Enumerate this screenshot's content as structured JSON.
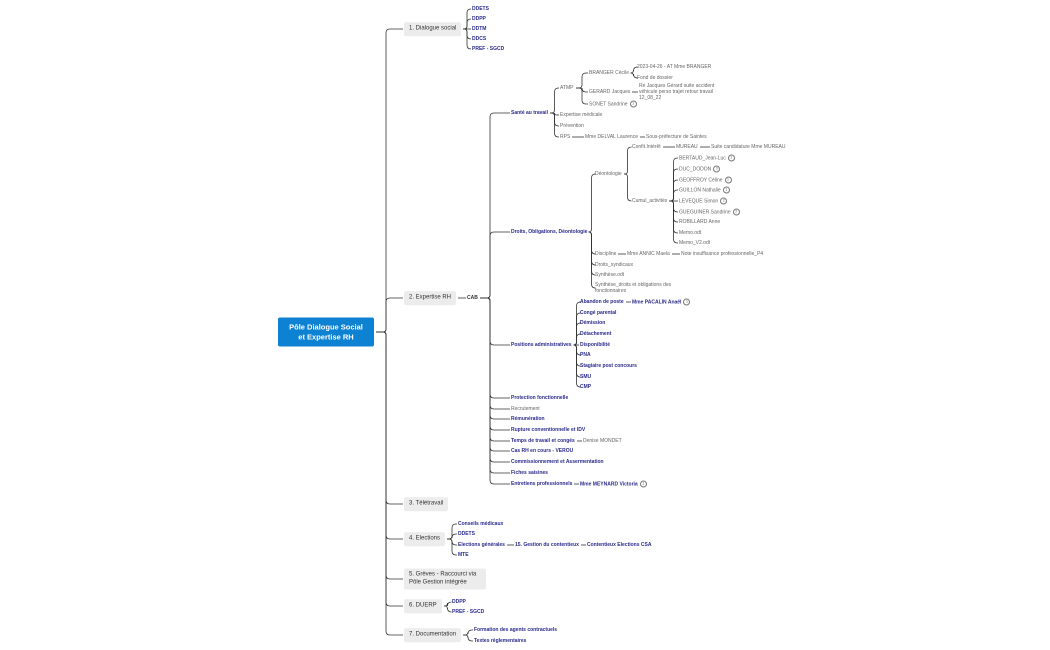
{
  "mindmap": {
    "root": {
      "label": "Pôle Dialogue Social et Expertise RH",
      "style": "root",
      "children": [
        {
          "label": "1. Dialogue social",
          "style": "box",
          "children": [
            {
              "label": "DDETS",
              "style": "blue"
            },
            {
              "label": "DDPP",
              "style": "blue"
            },
            {
              "label": "DDTM",
              "style": "blue"
            },
            {
              "label": "DDCS",
              "style": "blue"
            },
            {
              "label": "PREF - SGCD",
              "style": "blue"
            }
          ]
        },
        {
          "label": "2. Expertise RH",
          "style": "box",
          "children": [
            {
              "label": "CAB",
              "style": "dark",
              "children": [
                {
                  "label": "Santé au travail",
                  "style": "blue",
                  "children": [
                    {
                      "label": "ATMP",
                      "style": "grey",
                      "children": [
                        {
                          "label": "BRANGER Cécile",
                          "style": "grey",
                          "children": [
                            {
                              "label": "2023-04-26 - AT Mme BRANGER",
                              "style": "grey"
                            },
                            {
                              "label": "Fond de dossier",
                              "style": "grey"
                            }
                          ]
                        },
                        {
                          "label": "GERARD Jacques",
                          "style": "grey",
                          "children": [
                            {
                              "label": "Re Jacques Gérard suite accident véhicule perso trajet retour travail 12_08_22",
                              "style": "grey"
                            }
                          ]
                        },
                        {
                          "label": "SONET Sandrine",
                          "style": "grey",
                          "note": "1"
                        }
                      ]
                    },
                    {
                      "label": "Expertise médicale",
                      "style": "grey"
                    },
                    {
                      "label": "Prévention",
                      "style": "grey"
                    },
                    {
                      "label": "RPS",
                      "style": "grey",
                      "children": [
                        {
                          "label": "Mme DELVAL Laurence",
                          "style": "grey",
                          "children": [
                            {
                              "label": "Sous-préfecture de Saintes",
                              "style": "grey"
                            }
                          ]
                        }
                      ]
                    }
                  ]
                },
                {
                  "label": "Droits, Obligations, Déontologie",
                  "style": "blue",
                  "children": [
                    {
                      "label": "Déontologie",
                      "style": "grey",
                      "children": [
                        {
                          "label": "Confit.Intérêt",
                          "style": "grey",
                          "children": [
                            {
                              "label": "MUREAU",
                              "style": "grey",
                              "children": [
                                {
                                  "label": "Suite candidature Mme MUREAU",
                                  "style": "grey"
                                }
                              ]
                            }
                          ]
                        },
                        {
                          "label": "Cumul_activités",
                          "style": "grey",
                          "children": [
                            {
                              "label": "BERTAUD_Jean-Luc",
                              "style": "grey",
                              "note": "1"
                            },
                            {
                              "label": "DUC_DODON",
                              "style": "grey",
                              "note": "3"
                            },
                            {
                              "label": "GEOFFROY Céline",
                              "style": "grey",
                              "note": "1"
                            },
                            {
                              "label": "GUILLON Nathalie",
                              "style": "grey",
                              "note": "1"
                            },
                            {
                              "label": "LEVEQUE Simon",
                              "style": "grey",
                              "note": "2"
                            },
                            {
                              "label": "GUEGUINER Sandrine",
                              "style": "grey",
                              "note": "2"
                            },
                            {
                              "label": "ROBILLARD Anne",
                              "style": "grey"
                            },
                            {
                              "label": "Memo.odt",
                              "style": "grey"
                            },
                            {
                              "label": "Memo_V2.odt",
                              "style": "grey"
                            }
                          ]
                        }
                      ]
                    },
                    {
                      "label": "Discipline",
                      "style": "grey",
                      "children": [
                        {
                          "label": "Mme ANNIC Maela",
                          "style": "grey",
                          "children": [
                            {
                              "label": "Note insuffisance professionnelle_P4",
                              "style": "grey"
                            }
                          ]
                        }
                      ]
                    },
                    {
                      "label": "Droits_syndicaux",
                      "style": "grey"
                    },
                    {
                      "label": "Synthèse.odt",
                      "style": "grey"
                    },
                    {
                      "label": "Synthèse_droits et obligations des fonctionnaires",
                      "style": "grey"
                    }
                  ]
                },
                {
                  "label": "Positions administratives",
                  "style": "blue",
                  "children": [
                    {
                      "label": "Abandon de poste",
                      "style": "blue",
                      "children": [
                        {
                          "label": "Mme PACALIN Anaël",
                          "style": "blue",
                          "note": "1"
                        }
                      ]
                    },
                    {
                      "label": "Congé parental",
                      "style": "blue"
                    },
                    {
                      "label": "Démission",
                      "style": "blue"
                    },
                    {
                      "label": "Détachement",
                      "style": "blue"
                    },
                    {
                      "label": "Disponibilité",
                      "style": "blue"
                    },
                    {
                      "label": "PNA",
                      "style": "blue"
                    },
                    {
                      "label": "Stagiaire post concours",
                      "style": "blue"
                    },
                    {
                      "label": "SMU",
                      "style": "blue"
                    },
                    {
                      "label": "CMP",
                      "style": "blue"
                    }
                  ]
                },
                {
                  "label": "Protection fonctionnelle",
                  "style": "blue"
                },
                {
                  "label": "Recrutement",
                  "style": "grey"
                },
                {
                  "label": "Rémunération",
                  "style": "blue"
                },
                {
                  "label": "Rupture conventionnelle et IDV",
                  "style": "blue"
                },
                {
                  "label": "Temps de travail et congés",
                  "style": "blue",
                  "children": [
                    {
                      "label": "Denise MONDET",
                      "style": "grey"
                    }
                  ]
                },
                {
                  "label": "Cas RH en cours - VEROU",
                  "style": "blue"
                },
                {
                  "label": "Commissionnement et Assermentation",
                  "style": "blue"
                },
                {
                  "label": "Fiches saisines",
                  "style": "blue"
                },
                {
                  "label": "Entretiens professionnels",
                  "style": "blue",
                  "children": [
                    {
                      "label": "Mme MEYNARD Victoria",
                      "style": "blue",
                      "note": "1"
                    }
                  ]
                }
              ]
            }
          ]
        },
        {
          "label": "3. Télétravail",
          "style": "box"
        },
        {
          "label": "4. Elections",
          "style": "box",
          "children": [
            {
              "label": "Conseils médicaux",
              "style": "blue"
            },
            {
              "label": "DDETS",
              "style": "blue"
            },
            {
              "label": "Elections générales",
              "style": "blue",
              "children": [
                {
                  "label": "15. Gestion du contentieux",
                  "style": "blue",
                  "children": [
                    {
                      "label": "Contentieux Elections CSA",
                      "style": "blue"
                    }
                  ]
                }
              ]
            },
            {
              "label": "MTE",
              "style": "blue"
            }
          ]
        },
        {
          "label": "5. Grèves - Raccourci via Pôle Gestion intégrée",
          "style": "box"
        },
        {
          "label": "6. DUERP",
          "style": "box",
          "children": [
            {
              "label": "DDPP",
              "style": "blue"
            },
            {
              "label": "PREF - SGCD",
              "style": "blue"
            }
          ]
        },
        {
          "label": "7. Documentation",
          "style": "box",
          "children": [
            {
              "label": "Formation des agents contractuels",
              "style": "blue"
            },
            {
              "label": "Textes réglementaires",
              "style": "blue"
            }
          ]
        }
      ]
    }
  },
  "colors": {
    "root": "#0d82d3",
    "branch_text": "#2a2a8c",
    "leaf_text": "#666666",
    "box": "#ececec",
    "connector": "#333333"
  }
}
